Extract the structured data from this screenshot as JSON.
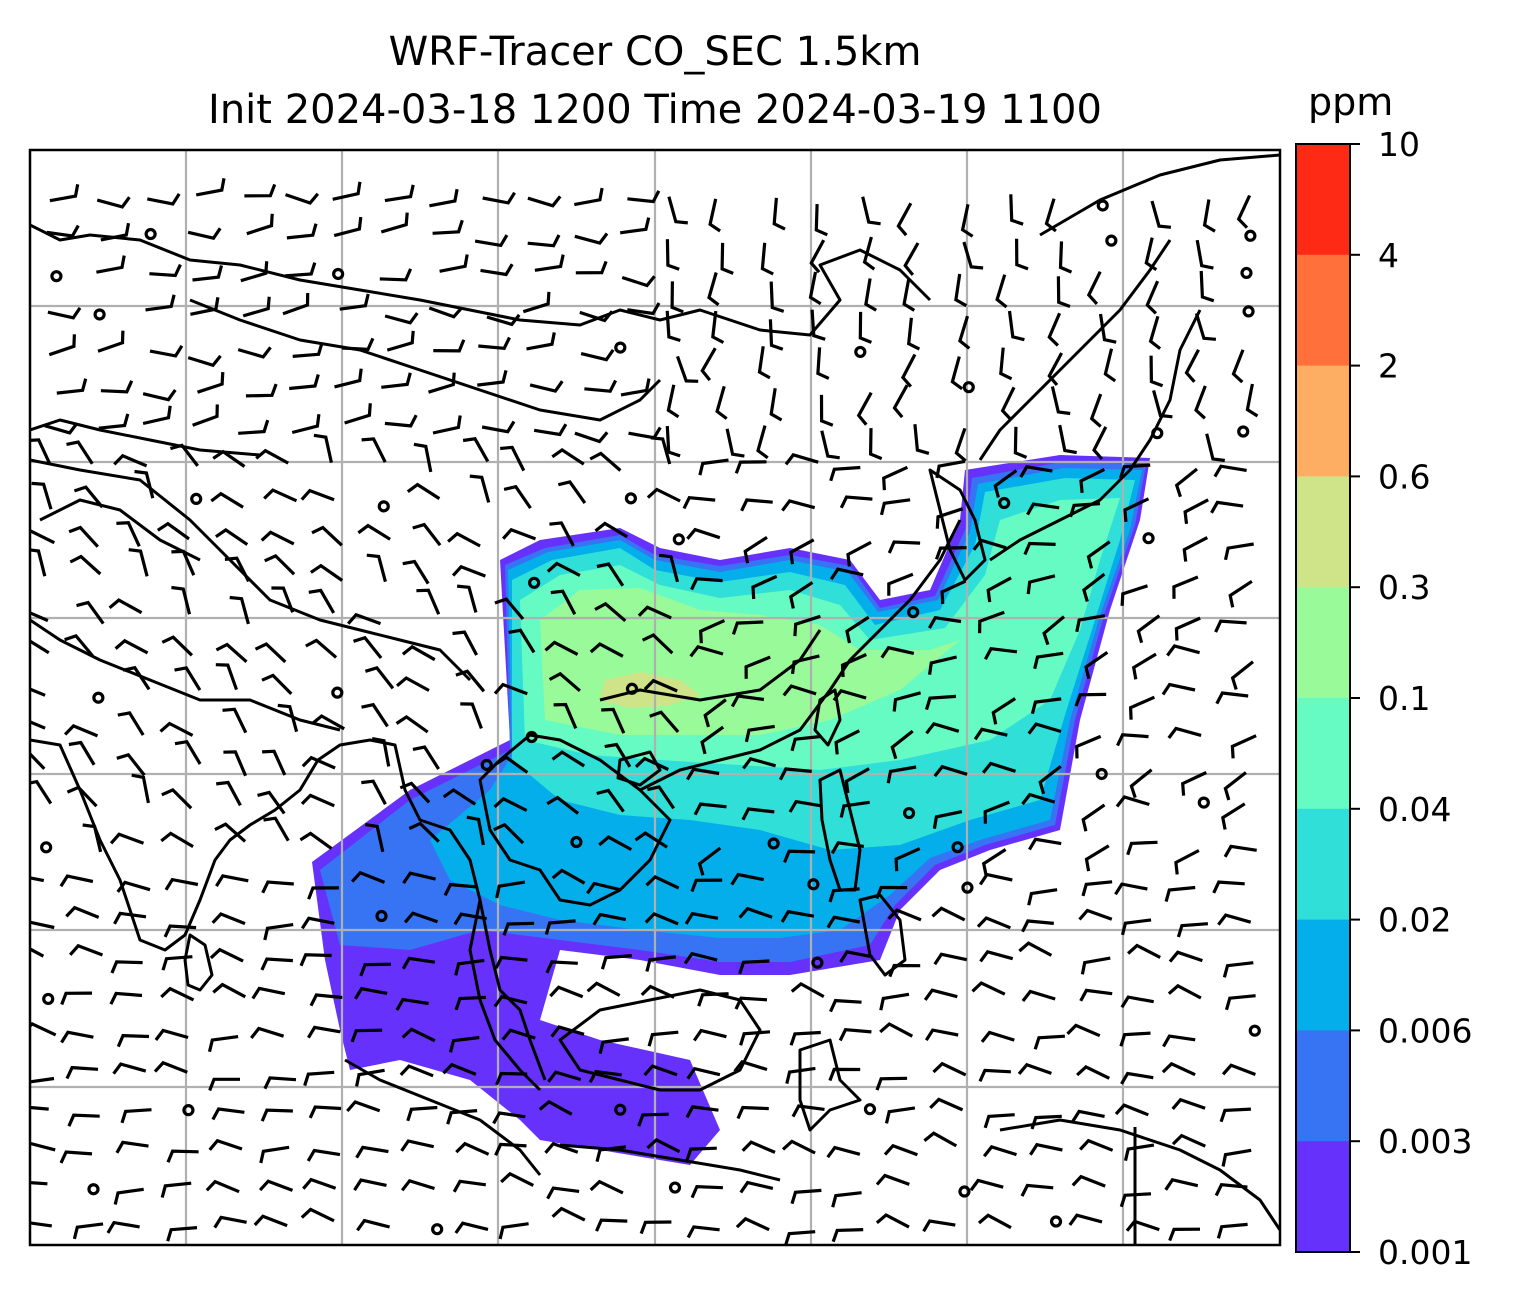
{
  "title": {
    "line1": "WRF-Tracer CO_SEC 1.5km",
    "line2": "Init 2024-03-18 1200 Time 2024-03-19 1100"
  },
  "colorbar": {
    "units": "ppm",
    "ticks": [
      "10",
      "4",
      "2",
      "0.6",
      "0.3",
      "0.1",
      "0.04",
      "0.02",
      "0.006",
      "0.003",
      "0.001"
    ],
    "band_colors": [
      "#ff2a16",
      "#ff703a",
      "#feae62",
      "#cfe389",
      "#98fa98",
      "#67fbc4",
      "#2fdfd8",
      "#04aeea",
      "#3674f4",
      "#6632fb"
    ]
  },
  "map": {
    "gridlines": true,
    "field": "CO_SEC tracer concentration",
    "overlay": "wind barbs",
    "coastline_color": "#000000",
    "grid_color": "#b0b0b0"
  }
}
